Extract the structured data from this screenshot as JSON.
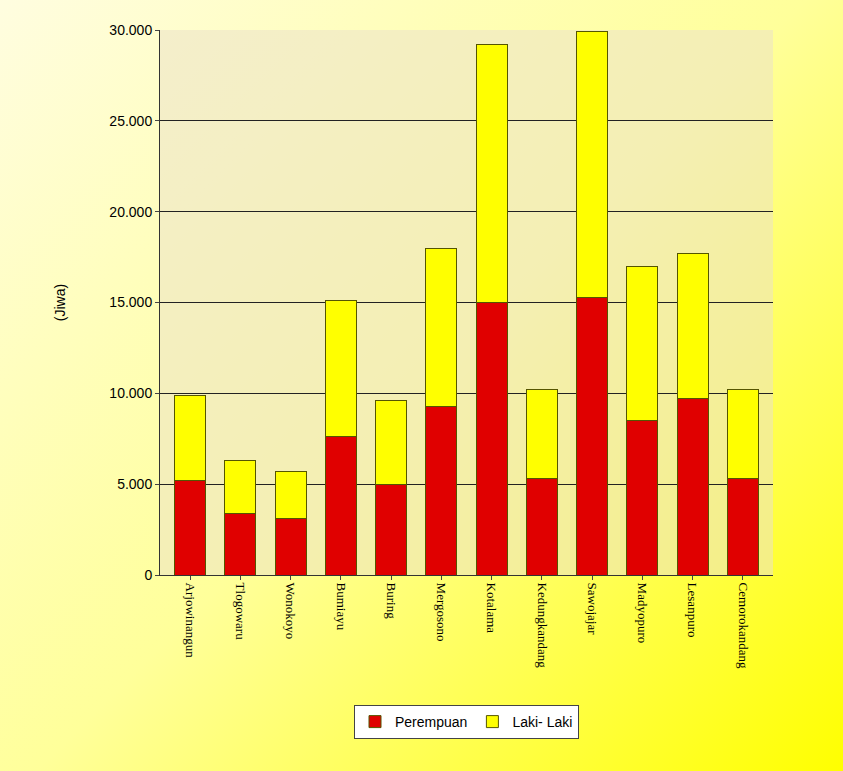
{
  "chart_data": {
    "type": "bar",
    "stacked": true,
    "y_label": "(Jiwa)",
    "categories": [
      "Arjowinangun",
      "Tlogowaru",
      "Wonokoyo",
      "Bumiayu",
      "Buring",
      "Mergosono",
      "Kotalama",
      "Kedungkandang",
      "Sawojajar",
      "Madyopuro",
      "Lesanpuro",
      "Cemorokandang"
    ],
    "series": [
      {
        "name": "Perempuan",
        "color": "#e00000",
        "values": [
          5200,
          3400,
          3100,
          7600,
          5000,
          9300,
          15000,
          5300,
          15300,
          8500,
          9700,
          5300
        ]
      },
      {
        "name": "Laki- Laki",
        "color": "#ffff00",
        "values": [
          4700,
          2900,
          2600,
          7500,
          4600,
          8700,
          14200,
          4900,
          14600,
          8500,
          8000,
          4900
        ]
      }
    ],
    "ylim": [
      0,
      30000
    ],
    "yticks": [
      0,
      {
        "value": 5000,
        "label": "5.000"
      },
      {
        "value": 10000,
        "label": "10.000"
      },
      {
        "value": 15000,
        "label": "15.000"
      },
      {
        "value": 20000,
        "label": "20.000"
      },
      {
        "value": 25000,
        "label": "25.000"
      },
      {
        "value": 30000,
        "label": "30.000"
      }
    ],
    "grid": true,
    "legend": "bottom"
  }
}
